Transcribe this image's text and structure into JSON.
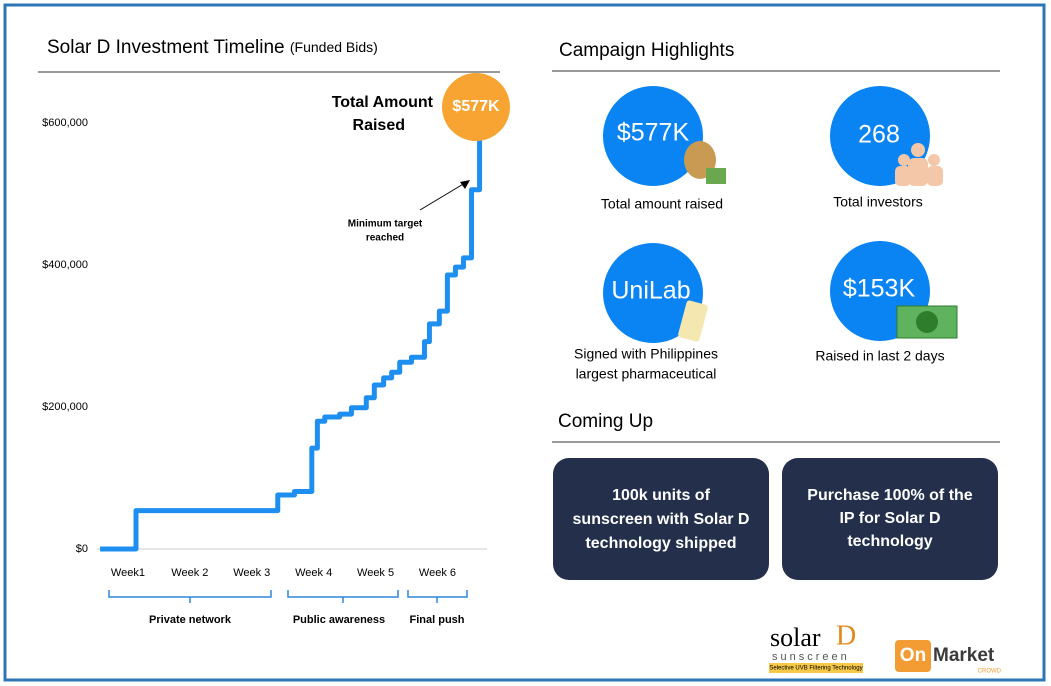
{
  "chart_data": {
    "type": "step",
    "title": "Solar D Investment Timeline",
    "subtitle": "(Funded Bids)",
    "series": [
      {
        "name": "Funded bids",
        "color": "#1e8ff0",
        "x": [
          0.55,
          1.13,
          3.42,
          3.69,
          3.97,
          4.06,
          4.18,
          4.42,
          4.61,
          4.85,
          4.98,
          5.13,
          5.26,
          5.39,
          5.58,
          5.79,
          5.87,
          6.03,
          6.16,
          6.29,
          6.42,
          6.55,
          6.68
        ],
        "values": [
          0,
          54000,
          76000,
          81000,
          142000,
          180000,
          186000,
          190000,
          199000,
          213000,
          231000,
          241000,
          249000,
          263000,
          270000,
          292000,
          317000,
          335000,
          386000,
          397000,
          410000,
          506000,
          577000
        ]
      }
    ],
    "xlim": [
      0.5,
      6.8
    ],
    "xticks": [
      {
        "value": 1,
        "label": "Week1"
      },
      {
        "value": 2,
        "label": "Week 2"
      },
      {
        "value": 3,
        "label": "Week 3"
      },
      {
        "value": 4,
        "label": "Week 4"
      },
      {
        "value": 5,
        "label": "Week 5"
      },
      {
        "value": 6,
        "label": "Week 6"
      }
    ],
    "ylim": [
      0,
      600000
    ],
    "yticks": [
      {
        "value": 0,
        "label": "$0"
      },
      {
        "value": 200000,
        "label": "$200,000"
      },
      {
        "value": 400000,
        "label": "$400,000"
      },
      {
        "value": 600000,
        "label": "$600,000"
      }
    ],
    "groups": [
      "Private network",
      "Public awareness",
      "Final push"
    ],
    "total_label": [
      "Total Amount",
      "Raised"
    ],
    "total_value": "$577K",
    "target_note": [
      "Minimum target",
      "reached"
    ]
  },
  "highlights": {
    "title": "Campaign Highlights",
    "items": [
      {
        "value": "$577K",
        "caption": [
          "Total amount raised"
        ]
      },
      {
        "value": "268",
        "caption": [
          "Total investors"
        ]
      },
      {
        "value": "UniLab",
        "caption": [
          "Signed with Philippines",
          "largest pharmaceutical"
        ]
      },
      {
        "value": "$153K",
        "caption": [
          "Raised in last 2 days"
        ]
      }
    ]
  },
  "coming_up": {
    "title": "Coming Up",
    "cards": [
      [
        "100k units of",
        "sunscreen with Solar D",
        "technology shipped"
      ],
      [
        "Purchase 100% of the",
        "IP for Solar D",
        "technology"
      ]
    ]
  },
  "logos": {
    "solar": "solar",
    "solar_d": "D",
    "sunscreen": "sunscreen",
    "tagline": "Selective UVB Filtering Technology",
    "on": "On",
    "market": "Market",
    "crowd": "CROWD"
  }
}
